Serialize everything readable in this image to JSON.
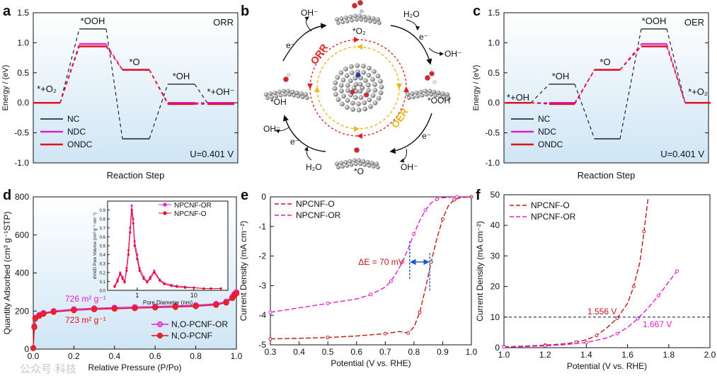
{
  "figure": {
    "panel_letters": [
      "a",
      "b",
      "c",
      "d",
      "e",
      "f"
    ],
    "watermark": "公众号·科技",
    "colors": {
      "black": "#111111",
      "magenta": "#e020d0",
      "red": "#e0101c",
      "navy": "#1a2a6c",
      "orange": "#e8b820",
      "darkred": "#c01818",
      "bg": "#d6eaf6"
    }
  },
  "chart_data": [
    {
      "id": "a",
      "type": "line",
      "corner_label": "ORR",
      "ylabel": "Energy / (eV)",
      "xlabel": "Reaction Step",
      "ylim": [
        -1.0,
        1.5
      ],
      "yticks": [
        "-1.0",
        "-0.5",
        "0.0",
        "0.5",
        "1.0",
        "1.5"
      ],
      "step_labels": [
        "*+O₂",
        "*OOH",
        "*O",
        "*OH",
        "*+OH⁻"
      ],
      "annotation": "U=0.401 V",
      "legend": [
        "NC",
        "NDC",
        "ONDC"
      ],
      "series": [
        {
          "name": "NC",
          "values": [
            0.0,
            1.23,
            -0.6,
            0.31,
            0.0
          ]
        },
        {
          "name": "NDC",
          "values": [
            0.0,
            0.98,
            0.55,
            0.0,
            0.0
          ]
        },
        {
          "name": "ONDC",
          "values": [
            0.0,
            0.94,
            0.55,
            -0.02,
            -0.02
          ]
        }
      ]
    },
    {
      "id": "b",
      "type": "diagram",
      "labels": {
        "orr": "ORR",
        "oer": "OER",
        "top_species": "*O₂",
        "right_species": "*OOH",
        "bottom_species": "*O",
        "left_species": "*OH",
        "oh_top_left": "OH⁻",
        "h2o_top_right": "H₂O",
        "e_top_right": "e⁻",
        "oh_right": "OH⁻",
        "e_right_bottom": "e⁻",
        "oh_bottom_right": "OH⁻",
        "h2o_bottom_left": "H₂O",
        "e_bottom_left": "e⁻",
        "oh_left": "OH⁻",
        "e_left": "e⁻"
      }
    },
    {
      "id": "c",
      "type": "line",
      "corner_label": "OER",
      "ylabel": "Energy / (eV)",
      "xlabel": "Reaction Step",
      "ylim": [
        -1.0,
        1.5
      ],
      "yticks": [
        "-1.0",
        "-0.5",
        "0.0",
        "0.5",
        "1.0",
        "1.5"
      ],
      "step_labels": [
        "*+OH",
        "*OH",
        "*O",
        "*OOH",
        "*+O₂"
      ],
      "annotation": "U=0.401 V",
      "legend": [
        "NC",
        "NDC",
        "ONDC"
      ],
      "series": [
        {
          "name": "NC",
          "values": [
            0.0,
            0.31,
            -0.6,
            1.23,
            0.0
          ]
        },
        {
          "name": "NDC",
          "values": [
            0.0,
            0.0,
            0.55,
            0.98,
            0.0
          ]
        },
        {
          "name": "ONDC",
          "values": [
            0.0,
            -0.02,
            0.55,
            0.94,
            0.0
          ]
        }
      ]
    },
    {
      "id": "d",
      "type": "line",
      "xlabel": "Relative Pressure (P/Po)",
      "ylabel": "Quantity Adsorbed (cm³ g⁻¹STP)",
      "xlim": [
        0.0,
        1.0
      ],
      "ylim": [
        0,
        800
      ],
      "xticks": [
        "0.0",
        "0.2",
        "0.4",
        "0.6",
        "0.8",
        "1.0"
      ],
      "yticks": [
        "0",
        "200",
        "400",
        "600",
        "800"
      ],
      "legend": [
        "N,O-PCNF-OR",
        "N,O-PCNF"
      ],
      "annotations": [
        "726 m² g⁻¹",
        "723 m² g⁻¹"
      ],
      "series": [
        {
          "name": "N,O-PCNF-OR",
          "x": [
            0.0,
            0.005,
            0.01,
            0.03,
            0.05,
            0.1,
            0.2,
            0.3,
            0.4,
            0.5,
            0.6,
            0.7,
            0.8,
            0.9,
            0.95,
            0.98,
            0.99,
            1.0
          ],
          "y": [
            5,
            120,
            165,
            180,
            190,
            200,
            210,
            215,
            218,
            221,
            224,
            227,
            231,
            238,
            250,
            275,
            290,
            300
          ]
        },
        {
          "name": "N,O-PCNF",
          "x": [
            0.0,
            0.005,
            0.01,
            0.03,
            0.05,
            0.1,
            0.2,
            0.3,
            0.4,
            0.5,
            0.6,
            0.7,
            0.8,
            0.9,
            0.95,
            0.98,
            0.99,
            1.0
          ],
          "y": [
            5,
            115,
            160,
            175,
            185,
            195,
            204,
            209,
            212,
            215,
            218,
            221,
            225,
            232,
            244,
            268,
            282,
            292
          ]
        }
      ],
      "inset": {
        "xlabel": "Pore Diameter (nm)",
        "ylabel": "dV/dD Pore Volume (cm³ g⁻¹ nm⁻¹)",
        "xticks": [
          "1",
          "10"
        ],
        "yticks": [
          "0.0",
          "0.1",
          "0.2",
          "0.3",
          "0.4",
          "0.5",
          "0.6",
          "0.7",
          "0.8",
          "0.9"
        ],
        "legend": [
          "NPCNF-OR",
          "NPCNF-O"
        ],
        "series": [
          {
            "name": "NPCNF-OR",
            "x": [
              0.4,
              0.45,
              0.5,
              0.55,
              0.6,
              0.65,
              0.7,
              0.75,
              0.8,
              0.85,
              0.9,
              1.0,
              1.1,
              1.3,
              1.5,
              1.7,
              2.0,
              2.5,
              3,
              4,
              5,
              7,
              10,
              15,
              20,
              30
            ],
            "y": [
              0.05,
              0.12,
              0.2,
              0.15,
              0.1,
              0.25,
              0.45,
              0.7,
              0.95,
              0.8,
              0.55,
              0.4,
              0.25,
              0.15,
              0.1,
              0.15,
              0.22,
              0.12,
              0.08,
              0.06,
              0.05,
              0.04,
              0.03,
              0.02,
              0.02,
              0.02
            ]
          },
          {
            "name": "NPCNF-O",
            "x": [
              0.4,
              0.45,
              0.5,
              0.55,
              0.6,
              0.65,
              0.7,
              0.75,
              0.8,
              0.85,
              0.9,
              1.0,
              1.1,
              1.3,
              1.5,
              1.7,
              2.0,
              2.5,
              3,
              4,
              5,
              7,
              10,
              15,
              20,
              30
            ],
            "y": [
              0.04,
              0.1,
              0.18,
              0.13,
              0.09,
              0.22,
              0.4,
              0.65,
              0.9,
              0.75,
              0.5,
              0.35,
              0.22,
              0.13,
              0.09,
              0.13,
              0.2,
              0.11,
              0.07,
              0.05,
              0.04,
              0.03,
              0.03,
              0.02,
              0.02,
              0.02
            ]
          }
        ]
      }
    },
    {
      "id": "e",
      "type": "line",
      "xlabel": "Potential (V vs. RHE)",
      "ylabel": "Current Density (mA cm⁻²)",
      "xlim": [
        0.3,
        1.0
      ],
      "ylim": [
        -5,
        0
      ],
      "xticks": [
        "0.3",
        "0.4",
        "0.5",
        "0.6",
        "0.7",
        "0.8",
        "0.9",
        "1.0"
      ],
      "yticks": [
        "0",
        "-1",
        "-2",
        "-3",
        "-4",
        "-5"
      ],
      "legend": [
        "NPCNF-O",
        "NPCNF-OR"
      ],
      "annotation": "ΔE = 70 mV",
      "series": [
        {
          "name": "NPCNF-O",
          "x": [
            0.3,
            0.4,
            0.5,
            0.6,
            0.7,
            0.75,
            0.78,
            0.8,
            0.82,
            0.84,
            0.86,
            0.88,
            0.9,
            0.92,
            0.94,
            0.96,
            1.0
          ],
          "y": [
            -4.8,
            -4.78,
            -4.75,
            -4.7,
            -4.62,
            -4.55,
            -4.6,
            -4.4,
            -3.9,
            -3.1,
            -2.2,
            -1.4,
            -0.75,
            -0.3,
            -0.1,
            -0.03,
            0
          ]
        },
        {
          "name": "NPCNF-OR",
          "x": [
            0.3,
            0.4,
            0.5,
            0.6,
            0.65,
            0.7,
            0.72,
            0.74,
            0.76,
            0.78,
            0.8,
            0.82,
            0.84,
            0.86,
            0.88,
            0.9,
            0.95,
            1.0
          ],
          "y": [
            -3.9,
            -3.75,
            -3.6,
            -3.45,
            -3.3,
            -3.05,
            -2.85,
            -2.55,
            -2.2,
            -1.75,
            -1.25,
            -0.8,
            -0.45,
            -0.2,
            -0.08,
            -0.03,
            0,
            0
          ]
        }
      ]
    },
    {
      "id": "f",
      "type": "line",
      "xlabel": "Potential (V vs. RHE)",
      "ylabel": "Current Density (mA cm⁻²)",
      "xlim": [
        1.0,
        2.0
      ],
      "ylim": [
        0,
        50
      ],
      "xticks": [
        "1.0",
        "1.2",
        "1.4",
        "1.6",
        "1.8",
        "2.0"
      ],
      "yticks": [
        "0",
        "10",
        "20",
        "30",
        "40",
        "50"
      ],
      "legend": [
        "NPCNF-O",
        "NPCNF-OR"
      ],
      "annotations": [
        "1.556 V",
        "1.667 V"
      ],
      "reference_line": 10,
      "series": [
        {
          "name": "NPCNF-O",
          "x": [
            1.0,
            1.1,
            1.2,
            1.3,
            1.35,
            1.4,
            1.45,
            1.5,
            1.55,
            1.6,
            1.63,
            1.66,
            1.68,
            1.7
          ],
          "y": [
            0.3,
            0.5,
            0.8,
            1.3,
            1.8,
            2.6,
            4,
            6.5,
            9.6,
            14.5,
            20,
            28,
            38,
            49
          ]
        },
        {
          "name": "NPCNF-OR",
          "x": [
            1.0,
            1.1,
            1.2,
            1.3,
            1.4,
            1.5,
            1.55,
            1.6,
            1.65,
            1.7,
            1.75,
            1.8,
            1.84
          ],
          "y": [
            0.2,
            0.35,
            0.6,
            1,
            1.7,
            3.2,
            4.6,
            6.6,
            9.5,
            13,
            17,
            21.5,
            25
          ]
        }
      ]
    }
  ]
}
